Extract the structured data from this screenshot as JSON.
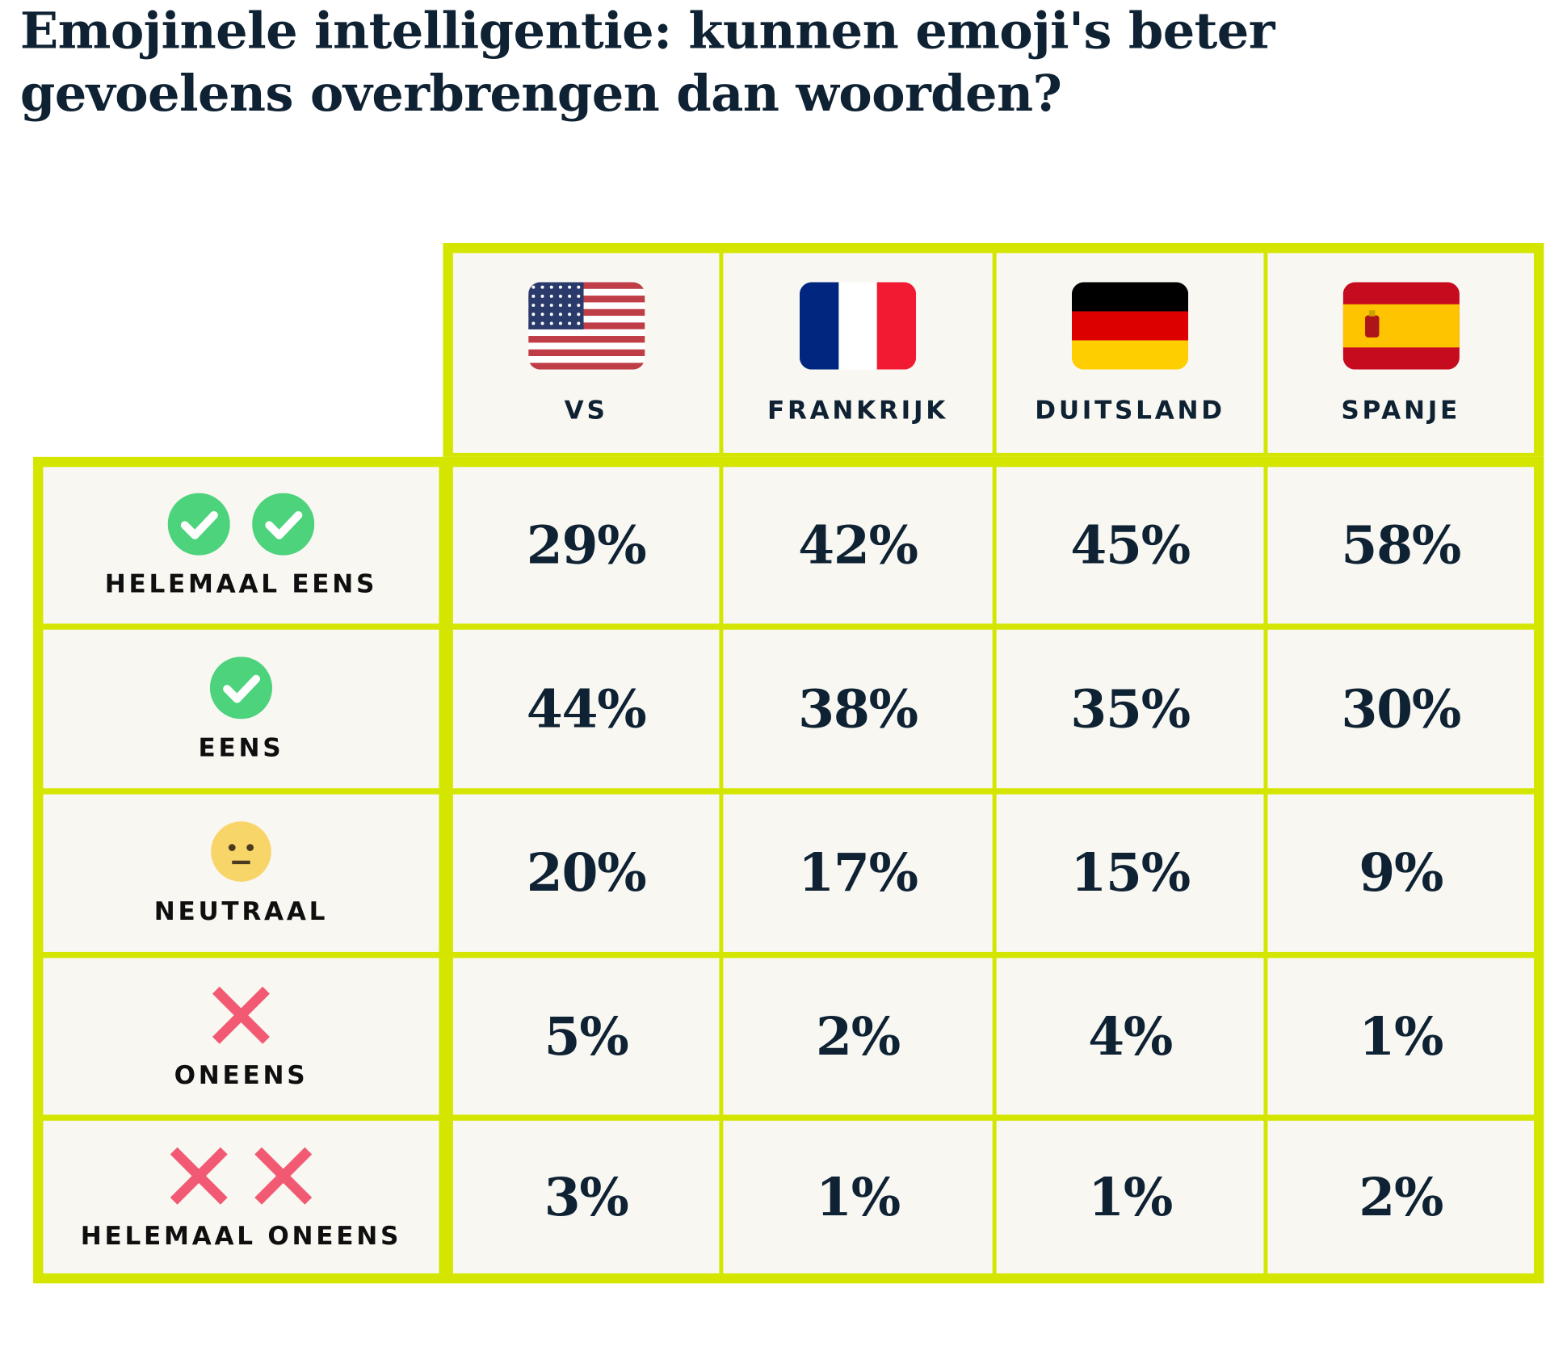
{
  "title": "Emojinele intelligentie: kunnen emoji's beter gevoelens overbrengen dan woorden?",
  "colors": {
    "border": "#d4e600",
    "cell": "#f8f7f2",
    "text": "#0f2233",
    "check": "#4cd37b",
    "cross": "#f25a73",
    "neutral": "#f8d568"
  },
  "columns": [
    {
      "label": "VS",
      "flag": "us-flag-icon"
    },
    {
      "label": "FRANKRIJK",
      "flag": "france-flag-icon"
    },
    {
      "label": "DUITSLAND",
      "flag": "germany-flag-icon"
    },
    {
      "label": "SPANJE",
      "flag": "spain-flag-icon"
    }
  ],
  "rows": [
    {
      "label": "HELEMAAL EENS",
      "icon": "double-check-icon",
      "values": [
        "29%",
        "42%",
        "45%",
        "58%"
      ]
    },
    {
      "label": "EENS",
      "icon": "check-icon",
      "values": [
        "44%",
        "38%",
        "35%",
        "30%"
      ]
    },
    {
      "label": "NEUTRAAL",
      "icon": "neutral-face-icon",
      "values": [
        "20%",
        "17%",
        "15%",
        "9%"
      ]
    },
    {
      "label": "ONEENS",
      "icon": "cross-icon",
      "values": [
        "5%",
        "2%",
        "4%",
        "1%"
      ]
    },
    {
      "label": "HELEMAAL ONEENS",
      "icon": "double-cross-icon",
      "values": [
        "3%",
        "1%",
        "1%",
        "2%"
      ]
    }
  ]
}
